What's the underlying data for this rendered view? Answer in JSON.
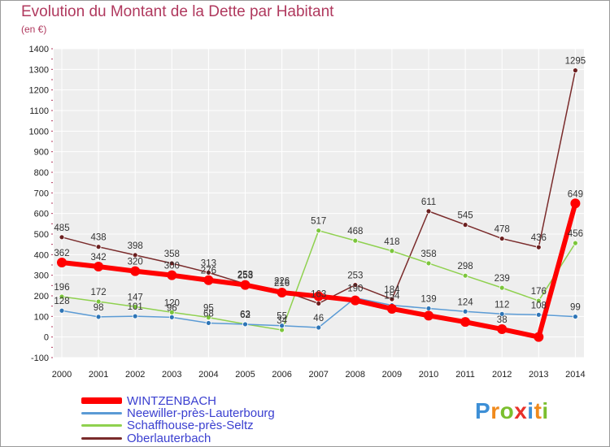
{
  "title": "Evolution du Montant de la Dette par Habitant",
  "subtitle": "(en €)",
  "brand": {
    "letters": [
      "P",
      "r",
      "o",
      "x",
      "i",
      "t",
      "i"
    ],
    "colors": [
      "#3d8fd6",
      "#f08a1c",
      "#7bbf2e",
      "#e8312a",
      "#3d8fd6",
      "#f08a1c",
      "#7bbf2e"
    ]
  },
  "chart_data": {
    "type": "line",
    "title": "Evolution du Montant de la Dette par Habitant",
    "ylabel": "(en €)",
    "x": [
      "2000",
      "2001",
      "2002",
      "2003",
      "2004",
      "2005",
      "2006",
      "2007",
      "2008",
      "2009",
      "2010",
      "2011",
      "2012",
      "2013",
      "2014"
    ],
    "ylim": [
      -100,
      1400
    ],
    "yticks": [
      -100,
      0,
      100,
      200,
      300,
      400,
      500,
      600,
      700,
      800,
      900,
      1000,
      1100,
      1200,
      1300,
      1400
    ],
    "grid": true,
    "legend_position": "bottom-left",
    "series": [
      {
        "name": "WINTZENBACH",
        "color": "#ff0000",
        "marker_color": "#ff0000",
        "stroke_width": 6,
        "marker_radius": 6,
        "values": [
          362,
          342,
          320,
          300,
          276,
          253,
          216,
          198,
          178,
          137,
          104,
          73,
          38,
          0,
          649
        ],
        "labels": [
          "362",
          "342",
          "320",
          "300",
          "276",
          "253",
          "216",
          "",
          "",
          "",
          "",
          "",
          "38",
          "",
          "649"
        ]
      },
      {
        "name": "Neewiller-près-Lauterbourg",
        "color": "#5b9bd5",
        "marker_color": "#2e75b6",
        "stroke_width": 1.5,
        "marker_radius": 3,
        "values": [
          128,
          98,
          101,
          96,
          68,
          62,
          55,
          46,
          190,
          154,
          139,
          124,
          112,
          108,
          99
        ],
        "labels": [
          "128",
          "98",
          "101",
          "96",
          "68",
          "62",
          "55",
          "46",
          "190",
          "154",
          "139",
          "124",
          "112",
          "108",
          "99"
        ]
      },
      {
        "name": "Schaffhouse-près-Seltz",
        "color": "#8fd14f",
        "marker_color": "#7cc63c",
        "stroke_width": 1.5,
        "marker_radius": 3,
        "values": [
          196,
          172,
          147,
          120,
          95,
          63,
          34,
          517,
          468,
          418,
          358,
          298,
          239,
          176,
          456
        ],
        "labels": [
          "196",
          "172",
          "147",
          "120",
          "95",
          "63",
          "34",
          "517",
          "468",
          "418",
          "358",
          "298",
          "239",
          "176",
          "456"
        ]
      },
      {
        "name": "Oberlauterbach",
        "color": "#7a2b2b",
        "marker_color": "#6b1f1f",
        "stroke_width": 1.5,
        "marker_radius": 3,
        "values": [
          485,
          438,
          398,
          358,
          313,
          258,
          226,
          163,
          253,
          184,
          611,
          545,
          478,
          436,
          1295
        ],
        "labels": [
          "485",
          "438",
          "398",
          "358",
          "313",
          "258",
          "226",
          "163",
          "253",
          "184",
          "611",
          "545",
          "478",
          "436",
          "1295"
        ]
      }
    ]
  }
}
